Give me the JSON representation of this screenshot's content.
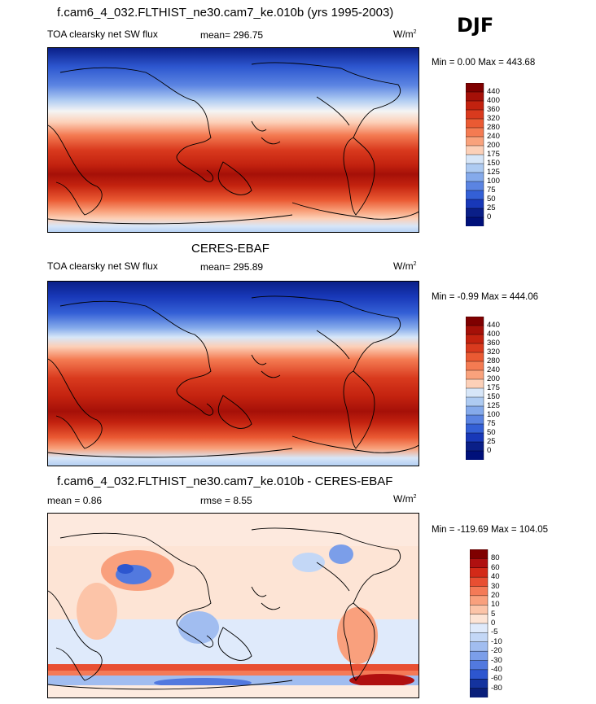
{
  "season": "DJF",
  "panels": [
    {
      "title": "f.cam6_4_032.FLTHIST_ne30.cam7_ke.010b (yrs 1995-2003)",
      "variable": "TOA clearsky net SW flux",
      "mean": "mean= 296.75",
      "units": "W/m",
      "units_exp": "2",
      "minmax": "Min =   0.00 Max = 443.68",
      "levels": [
        "440",
        "400",
        "360",
        "320",
        "280",
        "240",
        "200",
        "175",
        "150",
        "125",
        "100",
        "75",
        "50",
        "25",
        "0"
      ]
    },
    {
      "title": "CERES-EBAF",
      "variable": "TOA clearsky net SW flux",
      "mean": "mean= 295.89",
      "units": "W/m",
      "units_exp": "2",
      "minmax": "Min =  -0.99 Max = 444.06",
      "levels": [
        "440",
        "400",
        "360",
        "320",
        "280",
        "240",
        "200",
        "175",
        "150",
        "125",
        "100",
        "75",
        "50",
        "25",
        "0"
      ]
    },
    {
      "title": "f.cam6_4_032.FLTHIST_ne30.cam7_ke.010b - CERES-EBAF",
      "mean": "mean =   0.86",
      "rmse": "rmse =   8.55",
      "units": "W/m",
      "units_exp": "2",
      "minmax": "Min = -119.69 Max = 104.05",
      "levels": [
        "80",
        "60",
        "40",
        "30",
        "20",
        "10",
        "5",
        "0",
        "-5",
        "-10",
        "-20",
        "-30",
        "-40",
        "-60",
        "-80"
      ]
    }
  ],
  "colors": {
    "abs_scale": [
      "#7f0000",
      "#a51008",
      "#c3220f",
      "#d93a1e",
      "#ea5a33",
      "#f47b52",
      "#f9a27c",
      "#fcd0b8",
      "#d7e6f8",
      "#aecbf2",
      "#85aaeb",
      "#5b84e2",
      "#3460d6",
      "#1838b8",
      "#0a1f88",
      "#00107a"
    ],
    "diff_scale": [
      "#7f0000",
      "#b01010",
      "#d32a18",
      "#e84f32",
      "#f47a57",
      "#f9a07d",
      "#fcc4a8",
      "#fde4d5",
      "#dfeafb",
      "#c3d7f6",
      "#a1bdf0",
      "#7b9ee9",
      "#5279df",
      "#2d56cf",
      "#14339e",
      "#0a1f7a"
    ]
  }
}
